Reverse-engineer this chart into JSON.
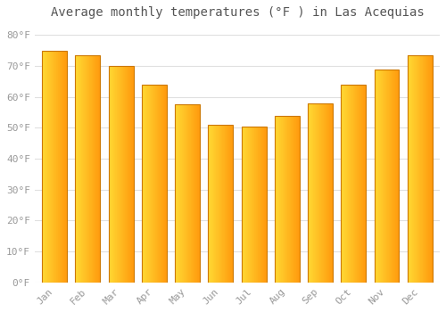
{
  "title": "Average monthly temperatures (°F ) in Las Acequias",
  "months": [
    "Jan",
    "Feb",
    "Mar",
    "Apr",
    "May",
    "Jun",
    "Jul",
    "Aug",
    "Sep",
    "Oct",
    "Nov",
    "Dec"
  ],
  "values": [
    75,
    73.5,
    70,
    64,
    57.5,
    51,
    50.5,
    54,
    58,
    64,
    69,
    73.5
  ],
  "bar_color_main": "#FFA500",
  "bar_color_left": "#FFCC33",
  "bar_color_right": "#E07000",
  "bar_edge_color": "#CC7700",
  "background_color": "#FFFFFF",
  "grid_color": "#E0E0E0",
  "ytick_labels": [
    "0°F",
    "10°F",
    "20°F",
    "30°F",
    "40°F",
    "50°F",
    "60°F",
    "70°F",
    "80°F"
  ],
  "ytick_values": [
    0,
    10,
    20,
    30,
    40,
    50,
    60,
    70,
    80
  ],
  "ylim": [
    0,
    83
  ],
  "tick_color": "#999999",
  "label_color": "#555555",
  "title_fontsize": 10,
  "tick_fontsize": 8,
  "font_family": "monospace",
  "bar_width": 0.75
}
